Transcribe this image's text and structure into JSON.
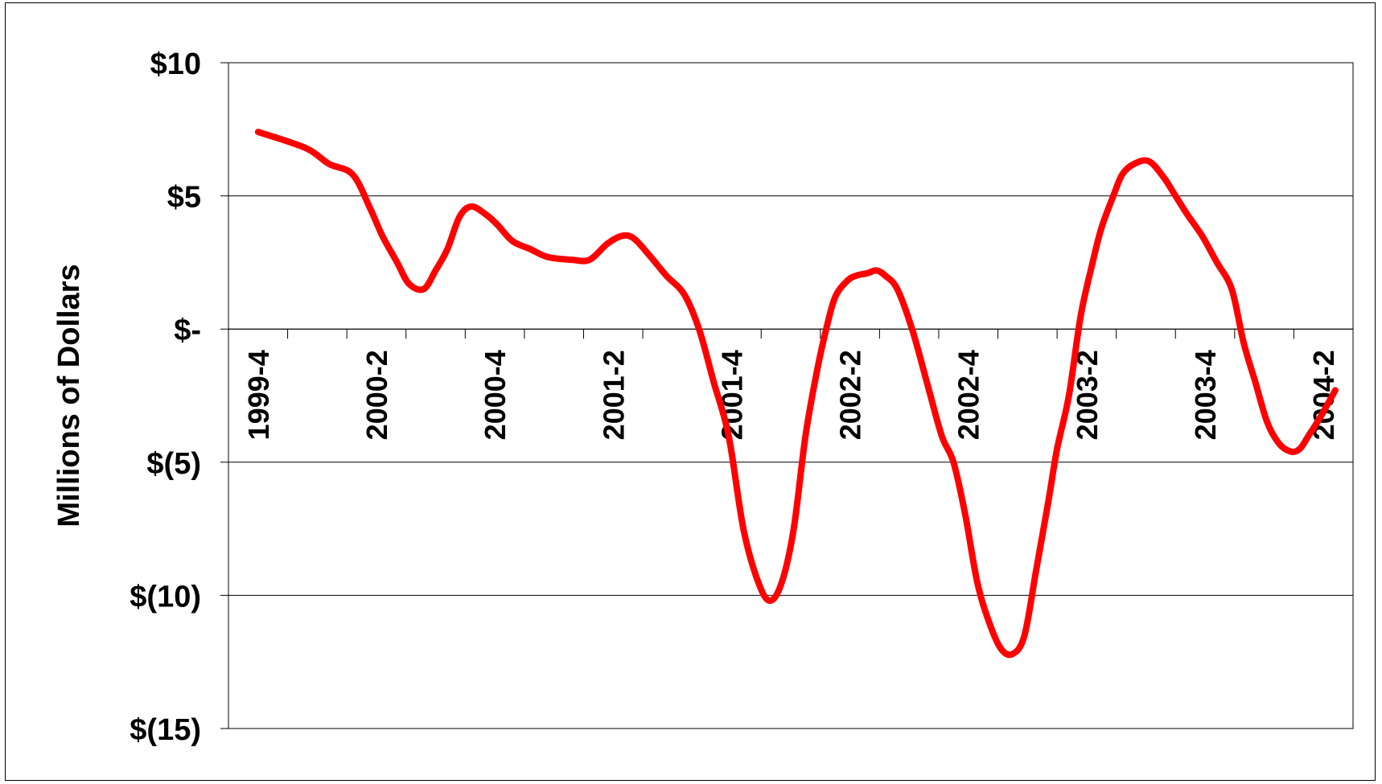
{
  "chart_data": {
    "type": "line",
    "title": "",
    "xlabel": "",
    "ylabel": "Millions of Dollars",
    "ylim": [
      -15,
      10
    ],
    "yticks": [
      {
        "value": 10,
        "label": "$10"
      },
      {
        "value": 5,
        "label": "$5"
      },
      {
        "value": 0,
        "label": "$-"
      },
      {
        "value": -5,
        "label": "$(5)"
      },
      {
        "value": -10,
        "label": "$(10)"
      },
      {
        "value": -15,
        "label": "$(15)"
      }
    ],
    "xticklabels": [
      "1999-4",
      "2000-2",
      "2000-4",
      "2001-2",
      "2001-4",
      "2002-2",
      "2002-4",
      "2003-2",
      "2003-4",
      "2004-2"
    ],
    "grid": true,
    "legend": "none",
    "series_color": "#ff0000",
    "series": [
      {
        "x": [
          0,
          0.8,
          1.2,
          1.6,
          1.9,
          2.1,
          2.35,
          2.55,
          2.8,
          3.0,
          3.2,
          3.4,
          3.6,
          3.85,
          4.05,
          4.3,
          4.6,
          4.9,
          5.3,
          5.6,
          5.9,
          6.15,
          6.35,
          6.6,
          6.9,
          7.2,
          7.45,
          7.7,
          7.95,
          8.2,
          8.45,
          8.65,
          8.85,
          9.05,
          9.25,
          9.45,
          9.6,
          9.75,
          9.95,
          10.1,
          10.3,
          10.45,
          10.6,
          10.8,
          11.05,
          11.3,
          11.55,
          11.75,
          11.95,
          12.15,
          12.35,
          12.55,
          12.75,
          12.95,
          13.15,
          13.35,
          13.5,
          13.7,
          13.9,
          14.1,
          14.25,
          14.45,
          14.6,
          14.8,
          15.05,
          15.3,
          15.5,
          15.7,
          15.95,
          16.2,
          16.45,
          16.65,
          16.85,
          17.05,
          17.25,
          17.45,
          17.6,
          17.75,
          17.95,
          18.2
        ],
        "values": [
          7.4,
          6.8,
          6.2,
          5.8,
          4.5,
          3.5,
          2.5,
          1.7,
          1.5,
          2.2,
          3.0,
          4.2,
          4.6,
          4.3,
          3.9,
          3.3,
          3.0,
          2.7,
          2.6,
          2.6,
          3.2,
          3.5,
          3.4,
          2.8,
          2.0,
          1.3,
          0.0,
          -2.0,
          -4.0,
          -7.5,
          -9.5,
          -10.2,
          -9.5,
          -7.5,
          -4.0,
          -1.5,
          0.0,
          1.2,
          1.8,
          2.0,
          2.1,
          2.2,
          2.0,
          1.5,
          0.0,
          -2.0,
          -4.0,
          -5.0,
          -7.0,
          -9.5,
          -11.0,
          -12.0,
          -12.2,
          -11.5,
          -9.0,
          -6.5,
          -4.5,
          -2.5,
          0.5,
          2.5,
          3.8,
          5.0,
          5.8,
          6.2,
          6.3,
          5.7,
          5.0,
          4.3,
          3.5,
          2.5,
          1.5,
          -0.5,
          -2.0,
          -3.5,
          -4.3,
          -4.6,
          -4.5,
          -4.0,
          -3.3,
          -2.3
        ]
      }
    ]
  }
}
